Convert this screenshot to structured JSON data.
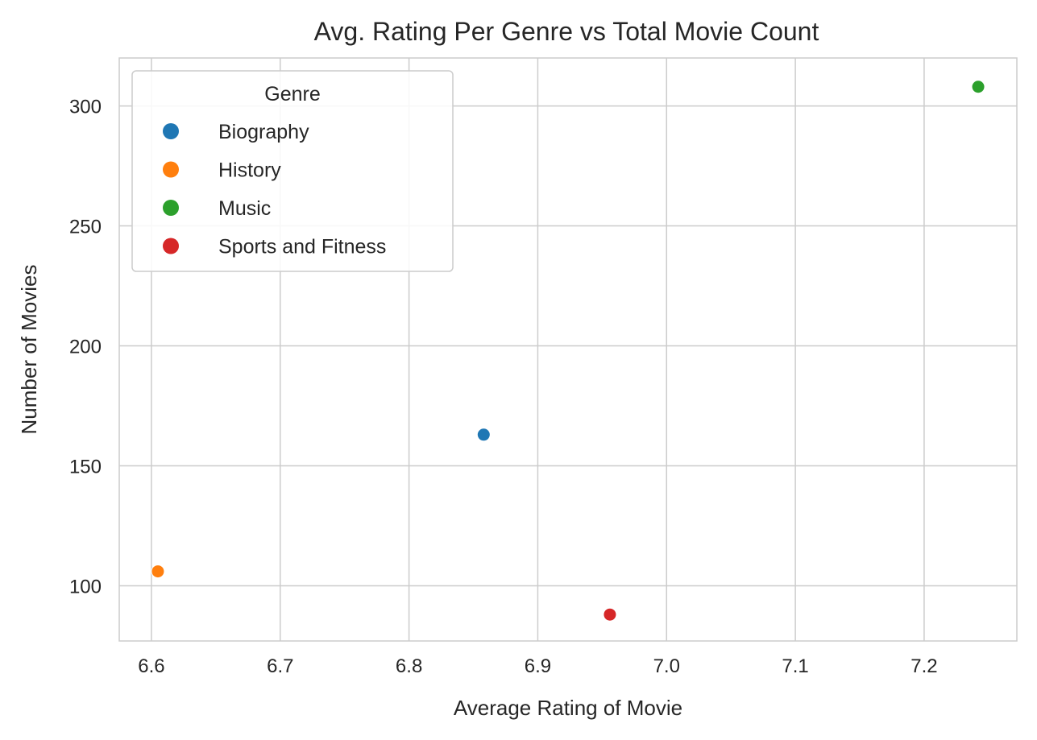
{
  "chart_data": {
    "type": "scatter",
    "title": "Avg. Rating Per Genre vs Total Movie Count",
    "xlabel": "Average Rating of Movie",
    "ylabel": "Number of Movies",
    "xlim": [
      6.575,
      7.272
    ],
    "ylim": [
      77,
      320
    ],
    "xticks": [
      6.6,
      6.7,
      6.8,
      6.9,
      7.0,
      7.1,
      7.2
    ],
    "xtick_labels": [
      "6.6",
      "6.7",
      "6.8",
      "6.9",
      "7.0",
      "7.1",
      "7.2"
    ],
    "yticks": [
      100,
      150,
      200,
      250,
      300
    ],
    "ytick_labels": [
      "100",
      "150",
      "200",
      "250",
      "300"
    ],
    "grid": true,
    "legend": {
      "title": "Genre",
      "placement": "top-left"
    },
    "series": [
      {
        "name": "Biography",
        "color": "#1f77b4",
        "x": 6.858,
        "y": 163
      },
      {
        "name": "History",
        "color": "#ff7f0e",
        "x": 6.605,
        "y": 106
      },
      {
        "name": "Music",
        "color": "#2ca02c",
        "x": 7.242,
        "y": 308
      },
      {
        "name": "Sports and Fitness",
        "color": "#d62728",
        "x": 6.956,
        "y": 88
      }
    ]
  }
}
